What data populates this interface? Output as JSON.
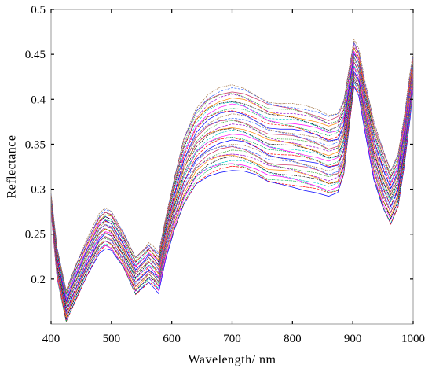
{
  "chart_data": {
    "type": "line",
    "title": "",
    "xlabel": "Wavelength/ nm",
    "ylabel": "Reflectance",
    "xlim": [
      400,
      1000
    ],
    "ylim": [
      0.15,
      0.5
    ],
    "xticks": [
      400,
      500,
      600,
      700,
      800,
      900,
      1000
    ],
    "xtick_labels": [
      "400",
      "500",
      "600",
      "700",
      "800",
      "900",
      "1000"
    ],
    "yticks": [
      0.2,
      0.25,
      0.3,
      0.35,
      0.4,
      0.45,
      0.5
    ],
    "ytick_labels": [
      "0.2",
      "0.25",
      "0.3",
      "0.35",
      "0.4",
      "0.45",
      "0.5"
    ],
    "grid": false,
    "legend": "none",
    "series_count": 36,
    "x": [
      400,
      410,
      425,
      440,
      460,
      480,
      490,
      500,
      520,
      540,
      555,
      562,
      570,
      578,
      590,
      605,
      620,
      640,
      660,
      680,
      700,
      720,
      740,
      760,
      780,
      800,
      820,
      840,
      860,
      875,
      885,
      895,
      902,
      910,
      920,
      935,
      950,
      963,
      975,
      985,
      995,
      1000
    ],
    "envelope": {
      "lower": [
        0.275,
        0.2,
        0.152,
        0.175,
        0.205,
        0.23,
        0.235,
        0.232,
        0.212,
        0.182,
        0.192,
        0.197,
        0.192,
        0.185,
        0.222,
        0.255,
        0.282,
        0.305,
        0.315,
        0.32,
        0.322,
        0.32,
        0.315,
        0.307,
        0.305,
        0.303,
        0.3,
        0.297,
        0.292,
        0.295,
        0.315,
        0.375,
        0.415,
        0.405,
        0.365,
        0.31,
        0.278,
        0.26,
        0.28,
        0.325,
        0.38,
        0.415
      ],
      "upper": [
        0.295,
        0.235,
        0.188,
        0.215,
        0.245,
        0.272,
        0.278,
        0.275,
        0.252,
        0.225,
        0.235,
        0.24,
        0.235,
        0.228,
        0.268,
        0.315,
        0.358,
        0.39,
        0.405,
        0.412,
        0.415,
        0.412,
        0.405,
        0.398,
        0.396,
        0.395,
        0.392,
        0.388,
        0.382,
        0.385,
        0.4,
        0.44,
        0.466,
        0.455,
        0.42,
        0.375,
        0.345,
        0.322,
        0.34,
        0.38,
        0.43,
        0.45
      ]
    },
    "colors": [
      "#0000ff",
      "#ff0000",
      "#00b050",
      "#ff00ff",
      "#00cccc",
      "#000000",
      "#ff8800",
      "#9900cc",
      "#33aa33",
      "#cc3366",
      "#3366ff",
      "#996633"
    ]
  }
}
